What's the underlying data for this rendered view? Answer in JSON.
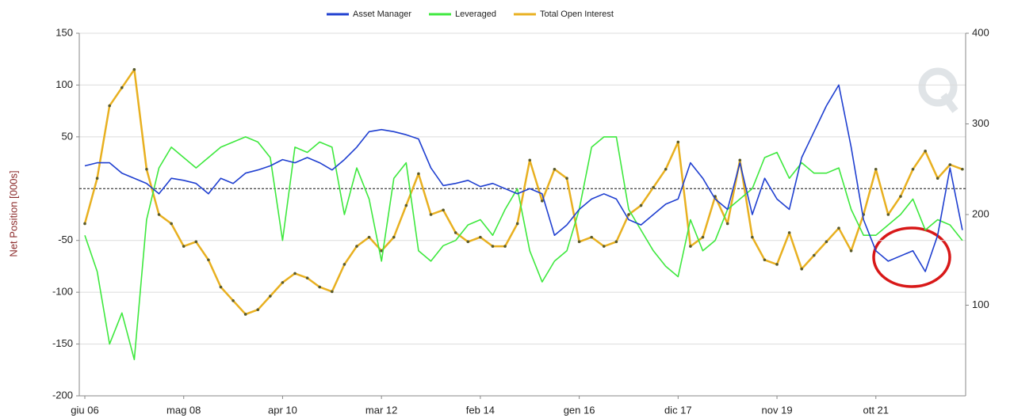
{
  "chart_data": {
    "type": "line",
    "legend": "top",
    "y_label": "Net Position [000s]",
    "grid": true,
    "zero_line": true,
    "categories": [
      "giu 06",
      null,
      null,
      null,
      null,
      null,
      null,
      null,
      "mag 08",
      null,
      null,
      null,
      null,
      null,
      null,
      null,
      "apr 10",
      null,
      null,
      null,
      null,
      null,
      null,
      null,
      "mar 12",
      null,
      null,
      null,
      null,
      null,
      null,
      null,
      "feb 14",
      null,
      null,
      null,
      null,
      null,
      null,
      null,
      "gen 16",
      null,
      null,
      null,
      null,
      null,
      null,
      null,
      "dic 17",
      null,
      null,
      null,
      null,
      null,
      null,
      null,
      "nov 19",
      null,
      null,
      null,
      null,
      null,
      null,
      null,
      "ott 21",
      null,
      null,
      null,
      null,
      null,
      null,
      null
    ],
    "ylim": [
      -200,
      150
    ],
    "yticks": [
      -200,
      -150,
      -100,
      -50,
      50,
      100,
      150
    ],
    "y2lim": [
      0,
      400
    ],
    "y2ticks": [
      100,
      200,
      300,
      400
    ],
    "series": [
      {
        "name": "Asset Manager",
        "color": "#1f3fd0",
        "values": [
          22,
          25,
          25,
          15,
          10,
          5,
          -5,
          10,
          8,
          5,
          -5,
          10,
          5,
          15,
          18,
          22,
          28,
          25,
          30,
          25,
          18,
          28,
          40,
          55,
          57,
          55,
          52,
          48,
          20,
          3,
          5,
          8,
          2,
          5,
          0,
          -5,
          0,
          -5,
          -45,
          -35,
          -20,
          -10,
          -5,
          -10,
          -30,
          -35,
          -25,
          -15,
          -10,
          25,
          10,
          -10,
          -20,
          25,
          -25,
          10,
          -10,
          -20,
          30,
          55,
          80,
          100,
          40,
          -30,
          -60,
          -70,
          -65,
          -60,
          -80,
          -45,
          20,
          -40
        ]
      },
      {
        "name": "Leveraged",
        "color": "#3ee83e",
        "values": [
          -45,
          -80,
          -150,
          -120,
          -165,
          -30,
          20,
          40,
          30,
          20,
          30,
          40,
          45,
          50,
          45,
          30,
          -50,
          40,
          35,
          45,
          40,
          -25,
          20,
          -10,
          -70,
          10,
          25,
          -60,
          -70,
          -55,
          -50,
          -35,
          -30,
          -45,
          -20,
          0,
          -60,
          -90,
          -70,
          -60,
          -20,
          40,
          50,
          50,
          -20,
          -40,
          -60,
          -75,
          -85,
          -30,
          -60,
          -50,
          -20,
          -10,
          0,
          30,
          35,
          10,
          25,
          15,
          15,
          20,
          -20,
          -45,
          -45,
          -35,
          -25,
          -10,
          -40,
          -30,
          -35,
          -50
        ]
      },
      {
        "name": "Total Open Interest",
        "color": "#e8b020",
        "axis": "y2",
        "markers": true,
        "values": [
          190,
          240,
          320,
          340,
          360,
          250,
          200,
          190,
          165,
          170,
          150,
          120,
          105,
          90,
          95,
          110,
          125,
          135,
          130,
          120,
          115,
          145,
          165,
          175,
          160,
          175,
          210,
          245,
          200,
          205,
          180,
          170,
          175,
          165,
          165,
          190,
          260,
          215,
          250,
          240,
          170,
          175,
          165,
          170,
          200,
          210,
          230,
          250,
          280,
          165,
          175,
          220,
          190,
          260,
          175,
          150,
          145,
          180,
          140,
          155,
          170,
          185,
          160,
          200,
          250,
          200,
          220,
          250,
          270,
          240,
          255,
          250
        ]
      }
    ]
  }
}
